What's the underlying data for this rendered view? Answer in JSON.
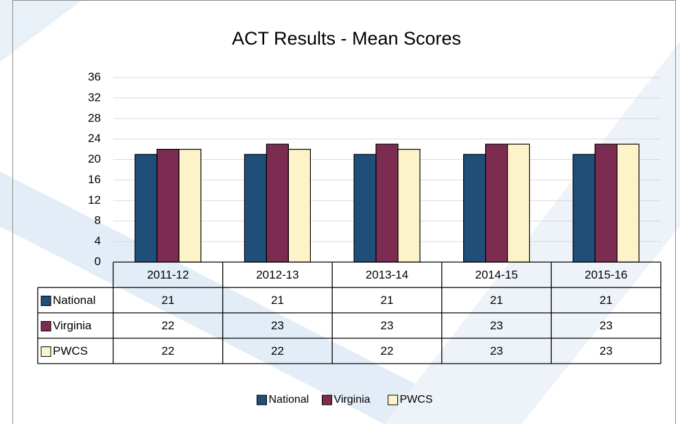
{
  "chart_data": {
    "type": "bar",
    "title": "ACT Results - Mean Scores",
    "categories": [
      "2011-12",
      "2012-13",
      "2013-14",
      "2014-15",
      "2015-16"
    ],
    "series": [
      {
        "name": "National",
        "color": "#1f4e79",
        "values": [
          21,
          21,
          21,
          21,
          21
        ]
      },
      {
        "name": "Virginia",
        "color": "#7b2c50",
        "values": [
          22,
          23,
          23,
          23,
          23
        ]
      },
      {
        "name": "PWCS",
        "color": "#fdf3c8",
        "values": [
          22,
          22,
          22,
          23,
          23
        ]
      }
    ],
    "ylim": [
      0,
      36
    ],
    "yticks": [
      0,
      4,
      8,
      12,
      16,
      20,
      24,
      28,
      32,
      36
    ],
    "grid": true,
    "data_table": true,
    "legend": "bottom"
  }
}
